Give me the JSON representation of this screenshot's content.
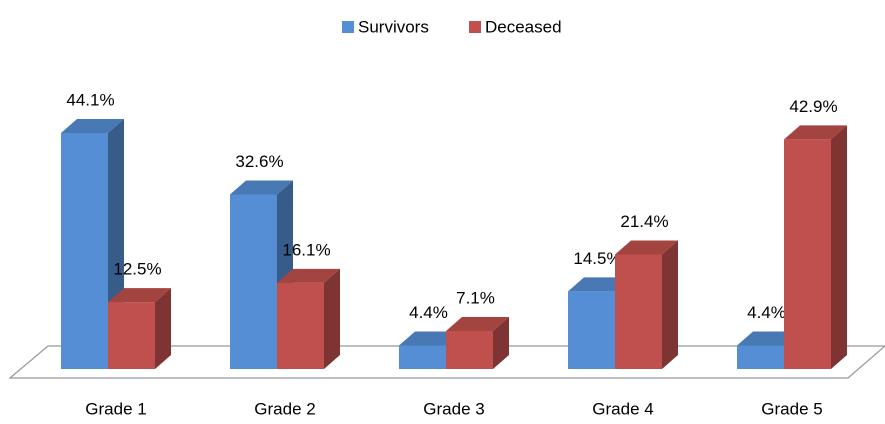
{
  "chart_data": {
    "type": "bar3d",
    "categories": [
      "Grade 1",
      "Grade 2",
      "Grade 3",
      "Grade 4",
      "Grade 5"
    ],
    "series": [
      {
        "name": "Survivors",
        "color": "#558ed5",
        "values": [
          44.1,
          32.6,
          4.4,
          14.5,
          4.4
        ],
        "value_labels": [
          "44.1%",
          "32.6%",
          "4.4%",
          "14.5%",
          "4.4%"
        ]
      },
      {
        "name": "Deceased",
        "color": "#c0504d",
        "values": [
          12.5,
          16.1,
          7.1,
          21.4,
          42.9
        ],
        "value_labels": [
          "12.5%",
          "16.1%",
          "7.1%",
          "21.4%",
          "42.9%"
        ]
      }
    ],
    "legend": "top"
  }
}
